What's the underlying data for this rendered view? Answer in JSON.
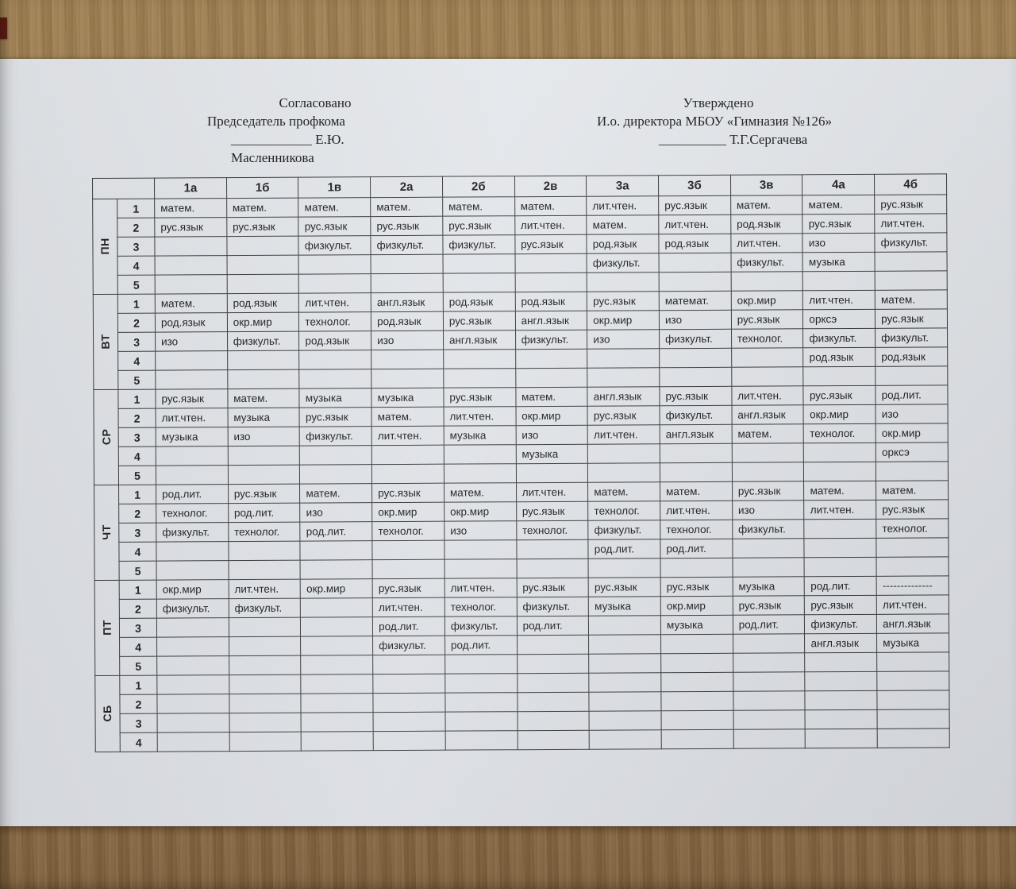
{
  "approval": {
    "left": {
      "title": "Согласовано",
      "role": "Председатель профкома",
      "signature": "____________ Е.Ю. Масленникова"
    },
    "right": {
      "title": "Утверждено",
      "role": "И.о. директора МБОУ «Гимназия №126»",
      "signature": "__________ Т.Г.Сергачева"
    }
  },
  "colors": {
    "wood_top": "#9d7e51",
    "wood_bottom": "#7d5f3b",
    "paper": "#e1e4e8",
    "table_line": "#3b3b3e",
    "text": "#232325",
    "red_chip": "#5e1d14"
  },
  "table": {
    "corner_label": "",
    "class_headers": [
      "1а",
      "1б",
      "1в",
      "2а",
      "2б",
      "2в",
      "3а",
      "3б",
      "3в",
      "4а",
      "4б"
    ],
    "days": [
      {
        "label": "ПН",
        "rows": [
          {
            "num": "1",
            "cells": [
              "матем.",
              "матем.",
              "матем.",
              "матем.",
              "матем.",
              "матем.",
              "лит.чтен.",
              "рус.язык",
              "матем.",
              "матем.",
              "рус.язык"
            ]
          },
          {
            "num": "2",
            "cells": [
              "рус.язык",
              "рус.язык",
              "рус.язык",
              "рус.язык",
              "рус.язык",
              "лит.чтен.",
              "матем.",
              "лит.чтен.",
              "род.язык",
              "рус.язык",
              "лит.чтен."
            ]
          },
          {
            "num": "3",
            "cells": [
              "",
              "",
              "физкульт.",
              "физкульт.",
              "физкульт.",
              "рус.язык",
              "род.язык",
              "род.язык",
              "лит.чтен.",
              "изо",
              "физкульт."
            ]
          },
          {
            "num": "4",
            "cells": [
              "",
              "",
              "",
              "",
              "",
              "",
              "физкульт.",
              "",
              "физкульт.",
              "музыка",
              ""
            ]
          },
          {
            "num": "5",
            "cells": [
              "",
              "",
              "",
              "",
              "",
              "",
              "",
              "",
              "",
              "",
              ""
            ]
          }
        ]
      },
      {
        "label": "ВТ",
        "rows": [
          {
            "num": "1",
            "cells": [
              "матем.",
              "род.язык",
              "лит.чтен.",
              "англ.язык",
              "род.язык",
              "род.язык",
              "рус.язык",
              "математ.",
              "окр.мир",
              "лит.чтен.",
              "матем."
            ]
          },
          {
            "num": "2",
            "cells": [
              "род.язык",
              "окр.мир",
              "технолог.",
              "род.язык",
              "рус.язык",
              "англ.язык",
              "окр.мир",
              "изо",
              "рус.язык",
              "орксэ",
              "рус.язык"
            ]
          },
          {
            "num": "3",
            "cells": [
              "изо",
              "физкульт.",
              "род.язык",
              "изо",
              "англ.язык",
              "физкульт.",
              "изо",
              "физкульт.",
              "технолог.",
              "физкульт.",
              "физкульт."
            ]
          },
          {
            "num": "4",
            "cells": [
              "",
              "",
              "",
              "",
              "",
              "",
              "",
              "",
              "",
              "род.язык",
              "род.язык"
            ]
          },
          {
            "num": "5",
            "cells": [
              "",
              "",
              "",
              "",
              "",
              "",
              "",
              "",
              "",
              "",
              ""
            ]
          }
        ]
      },
      {
        "label": "СР",
        "rows": [
          {
            "num": "1",
            "cells": [
              "рус.язык",
              "матем.",
              "музыка",
              "музыка",
              "рус.язык",
              "матем.",
              "англ.язык",
              "рус.язык",
              "лит.чтен.",
              "рус.язык",
              "род.лит."
            ]
          },
          {
            "num": "2",
            "cells": [
              "лит.чтен.",
              "музыка",
              "рус.язык",
              "матем.",
              "лит.чтен.",
              "окр.мир",
              "рус.язык",
              "физкульт.",
              "англ.язык",
              "окр.мир",
              "изо"
            ]
          },
          {
            "num": "3",
            "cells": [
              "музыка",
              "изо",
              "физкульт.",
              "лит.чтен.",
              "музыка",
              "изо",
              "лит.чтен.",
              "англ.язык",
              "матем.",
              "технолог.",
              "окр.мир"
            ]
          },
          {
            "num": "4",
            "cells": [
              "",
              "",
              "",
              "",
              "",
              "музыка",
              "",
              "",
              "",
              "",
              "орксэ"
            ]
          },
          {
            "num": "5",
            "cells": [
              "",
              "",
              "",
              "",
              "",
              "",
              "",
              "",
              "",
              "",
              ""
            ]
          }
        ]
      },
      {
        "label": "ЧТ",
        "rows": [
          {
            "num": "1",
            "cells": [
              "род.лит.",
              "рус.язык",
              "матем.",
              "рус.язык",
              "матем.",
              "лит.чтен.",
              "матем.",
              "матем.",
              "рус.язык",
              "матем.",
              "матем."
            ]
          },
          {
            "num": "2",
            "cells": [
              "технолог.",
              "род.лит.",
              "изо",
              "окр.мир",
              "окр.мир",
              "рус.язык",
              "технолог.",
              "лит.чтен.",
              "изо",
              "лит.чтен.",
              "рус.язык"
            ]
          },
          {
            "num": "3",
            "cells": [
              "физкульт.",
              "технолог.",
              "род.лит.",
              "технолог.",
              "изо",
              "технолог.",
              "физкульт.",
              "технолог.",
              "физкульт.",
              "",
              "технолог."
            ]
          },
          {
            "num": "4",
            "cells": [
              "",
              "",
              "",
              "",
              "",
              "",
              "род.лит.",
              "род.лит.",
              "",
              "",
              ""
            ]
          },
          {
            "num": "5",
            "cells": [
              "",
              "",
              "",
              "",
              "",
              "",
              "",
              "",
              "",
              "",
              ""
            ]
          }
        ]
      },
      {
        "label": "ПТ",
        "rows": [
          {
            "num": "1",
            "cells": [
              "окр.мир",
              "лит.чтен.",
              "окр.мир",
              "рус.язык",
              "лит.чтен.",
              "рус.язык",
              "рус.язык",
              "рус.язык",
              "музыка",
              "род.лит.",
              "--------------"
            ]
          },
          {
            "num": "2",
            "cells": [
              "физкульт.",
              "физкульт.",
              "",
              "лит.чтен.",
              "технолог.",
              "физкульт.",
              "музыка",
              "окр.мир",
              "рус.язык",
              "рус.язык",
              "лит.чтен."
            ]
          },
          {
            "num": "3",
            "cells": [
              "",
              "",
              "",
              "род.лит.",
              "физкульт.",
              "род.лит.",
              "",
              "музыка",
              "род.лит.",
              "физкульт.",
              "англ.язык"
            ]
          },
          {
            "num": "4",
            "cells": [
              "",
              "",
              "",
              "физкульт.",
              "род.лит.",
              "",
              "",
              "",
              "",
              "англ.язык",
              "музыка"
            ]
          },
          {
            "num": "5",
            "cells": [
              "",
              "",
              "",
              "",
              "",
              "",
              "",
              "",
              "",
              "",
              ""
            ]
          }
        ]
      },
      {
        "label": "СБ",
        "rows": [
          {
            "num": "1",
            "cells": [
              "",
              "",
              "",
              "",
              "",
              "",
              "",
              "",
              "",
              "",
              ""
            ]
          },
          {
            "num": "2",
            "cells": [
              "",
              "",
              "",
              "",
              "",
              "",
              "",
              "",
              "",
              "",
              ""
            ]
          },
          {
            "num": "3",
            "cells": [
              "",
              "",
              "",
              "",
              "",
              "",
              "",
              "",
              "",
              "",
              ""
            ]
          },
          {
            "num": "4",
            "cells": [
              "",
              "",
              "",
              "",
              "",
              "",
              "",
              "",
              "",
              "",
              ""
            ]
          }
        ]
      }
    ]
  }
}
